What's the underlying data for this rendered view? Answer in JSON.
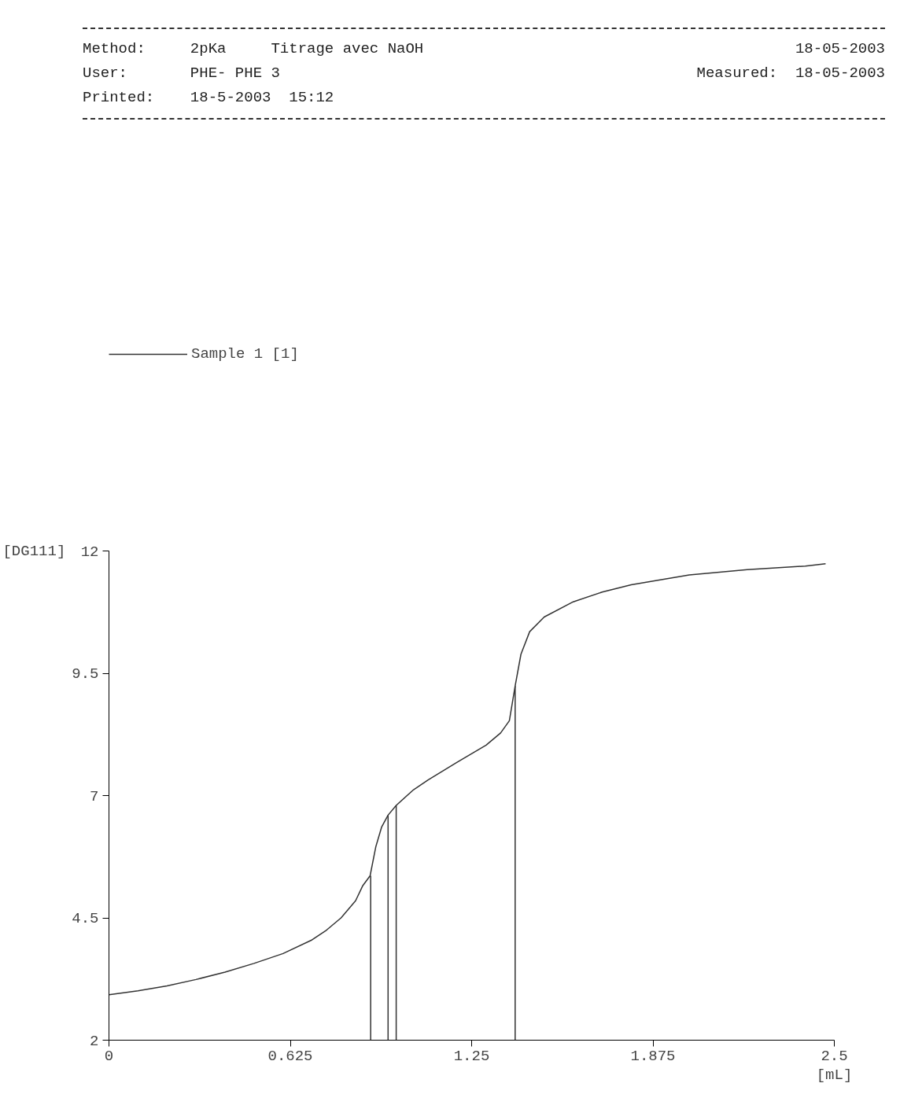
{
  "chart_data": {
    "type": "line",
    "xlabel": "[mL]",
    "ylabel": "[DG111]",
    "annotations": [
      "Method:     2pKa     Titrage avec NaOH",
      "User:       PHE- PHE 3",
      "Printed:    18-5-2003  15:12",
      "18-05-2003",
      "Measured:  18-05-2003"
    ],
    "xlim": [
      0,
      2.5
    ],
    "xticks": [
      0,
      0.625,
      1.25,
      1.875,
      2.5
    ],
    "ylim": [
      2,
      12
    ],
    "yticks": [
      2,
      4.5,
      7,
      9.5,
      12
    ],
    "grid": false,
    "legend": "top left",
    "series": [
      {
        "name": "Sample 1 [1]",
        "color": "#333333",
        "x": [
          0,
          0.1,
          0.2,
          0.3,
          0.4,
          0.5,
          0.6,
          0.7,
          0.75,
          0.8,
          0.85,
          0.875,
          0.9,
          0.92,
          0.94,
          0.962,
          0.99,
          1.05,
          1.1,
          1.2,
          1.3,
          1.35,
          1.38,
          1.4,
          1.42,
          1.45,
          1.5,
          1.6,
          1.7,
          1.8,
          1.9,
          2.0,
          2.2,
          2.4,
          2.47
        ],
        "values": [
          2.93,
          3.01,
          3.11,
          3.24,
          3.39,
          3.57,
          3.77,
          4.05,
          4.25,
          4.5,
          4.85,
          5.16,
          5.36,
          5.96,
          6.36,
          6.6,
          6.8,
          7.12,
          7.32,
          7.68,
          8.03,
          8.28,
          8.53,
          9.24,
          9.89,
          10.35,
          10.65,
          10.96,
          11.16,
          11.31,
          11.41,
          11.51,
          11.62,
          11.69,
          11.74
        ]
      },
      {
        "color": "#333333",
        "x": [
          0.902,
          0.902
        ],
        "values": [
          2,
          5.36
        ]
      },
      {
        "color": "#333333",
        "x": [
          0.962,
          0.962
        ],
        "values": [
          2,
          6.6
        ]
      },
      {
        "color": "#333333",
        "x": [
          0.99,
          0.99
        ],
        "values": [
          2,
          6.8
        ]
      },
      {
        "color": "#333333",
        "x": [
          1.4,
          1.4
        ],
        "values": [
          2,
          9.24
        ]
      }
    ]
  }
}
